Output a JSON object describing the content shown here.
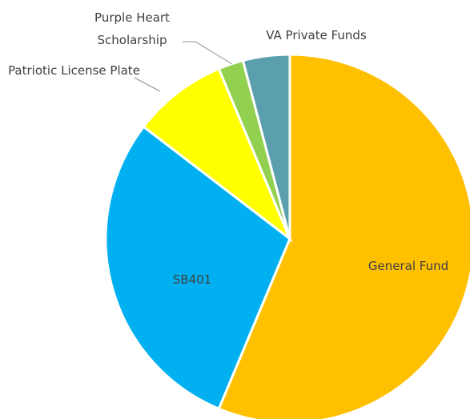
{
  "chart_data": {
    "type": "pie",
    "categories": [
      "General Fund",
      "SB401",
      "Patriotic License Plate",
      "Purple Heart Scholarship",
      "VA Private Funds"
    ],
    "values": [
      56.3,
      29.1,
      8.3,
      2.2,
      4.1
    ],
    "colors": [
      "#ffc000",
      "#00b0f0",
      "#ffff00",
      "#92d050",
      "#5b9fae"
    ]
  }
}
